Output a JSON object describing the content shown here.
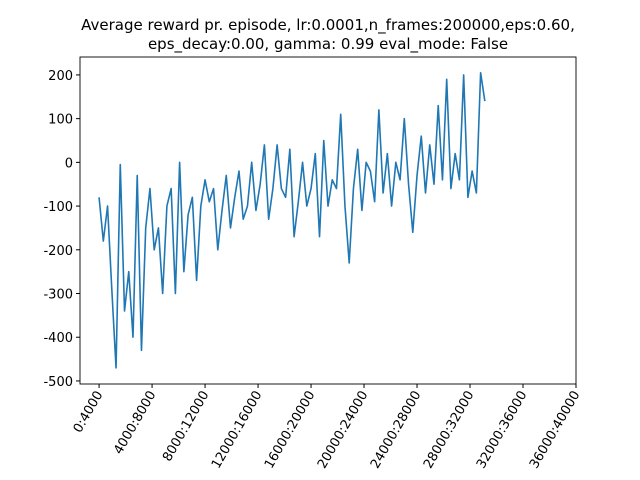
{
  "chart_data": {
    "type": "line",
    "title": [
      "Average reward pr. episode, lr:0.0001,n_frames:200000,eps:0.60,",
      "eps_decay:0.00, gamma: 0.99 eval_mode: False"
    ],
    "x": [
      0,
      0.08,
      0.16,
      0.24,
      0.32,
      0.4,
      0.48,
      0.56,
      0.64,
      0.72,
      0.8,
      0.88,
      0.96,
      1.04,
      1.12,
      1.2,
      1.28,
      1.36,
      1.44,
      1.52,
      1.6,
      1.68,
      1.76,
      1.84,
      1.92,
      2,
      2.08,
      2.16,
      2.24,
      2.32,
      2.4,
      2.48,
      2.56,
      2.64,
      2.72,
      2.8,
      2.88,
      2.96,
      3.04,
      3.12,
      3.2,
      3.28,
      3.36,
      3.44,
      3.52,
      3.6,
      3.68,
      3.76,
      3.84,
      3.92,
      4,
      4.08,
      4.16,
      4.24,
      4.32,
      4.4,
      4.48,
      4.56,
      4.64,
      4.72,
      4.8,
      4.88,
      4.96,
      5.04,
      5.12,
      5.2,
      5.28,
      5.36,
      5.44,
      5.52,
      5.6,
      5.68,
      5.76,
      5.84,
      5.92,
      6,
      6.08,
      6.16,
      6.24,
      6.32,
      6.4,
      6.48,
      6.56,
      6.64,
      6.72,
      6.8,
      6.88,
      6.96,
      7.04,
      7.12,
      7.2,
      7.28
    ],
    "series": [
      {
        "color": "#1f77b4",
        "values": [
          -80,
          -180,
          -100,
          -290,
          -470,
          -5,
          -340,
          -250,
          -400,
          -30,
          -430,
          -150,
          -60,
          -200,
          -150,
          -300,
          -100,
          -60,
          -300,
          0,
          -250,
          -120,
          -80,
          -270,
          -100,
          -40,
          -90,
          -60,
          -200,
          -110,
          -30,
          -150,
          -80,
          -20,
          -130,
          -100,
          0,
          -110,
          -50,
          40,
          -130,
          -60,
          40,
          -60,
          -80,
          30,
          -170,
          -90,
          0,
          -100,
          -60,
          20,
          -170,
          50,
          -100,
          -40,
          -60,
          110,
          -100,
          -230,
          -60,
          30,
          -110,
          0,
          -20,
          -90,
          120,
          -70,
          20,
          -100,
          0,
          -40,
          100,
          -50,
          -160,
          -30,
          60,
          -70,
          40,
          -50,
          130,
          -40,
          190,
          -60,
          20,
          -40,
          200,
          -80,
          -20,
          -70,
          205,
          140
        ]
      }
    ],
    "xlim": [
      -0.36,
      9
    ],
    "xticks": [
      {
        "value": 0,
        "label": "0:4000"
      },
      {
        "value": 1,
        "label": "4000:8000"
      },
      {
        "value": 2,
        "label": "8000:12000"
      },
      {
        "value": 3,
        "label": "12000:16000"
      },
      {
        "value": 4,
        "label": "16000:20000"
      },
      {
        "value": 5,
        "label": "20000:24000"
      },
      {
        "value": 6,
        "label": "24000:28000"
      },
      {
        "value": 7,
        "label": "28000:32000"
      },
      {
        "value": 8,
        "label": "32000:36000"
      },
      {
        "value": 9,
        "label": "36000:40000"
      }
    ],
    "ylim": [
      -507,
      241
    ],
    "yticks": [
      -500,
      -400,
      -300,
      -200,
      -100,
      0,
      100,
      200
    ]
  }
}
